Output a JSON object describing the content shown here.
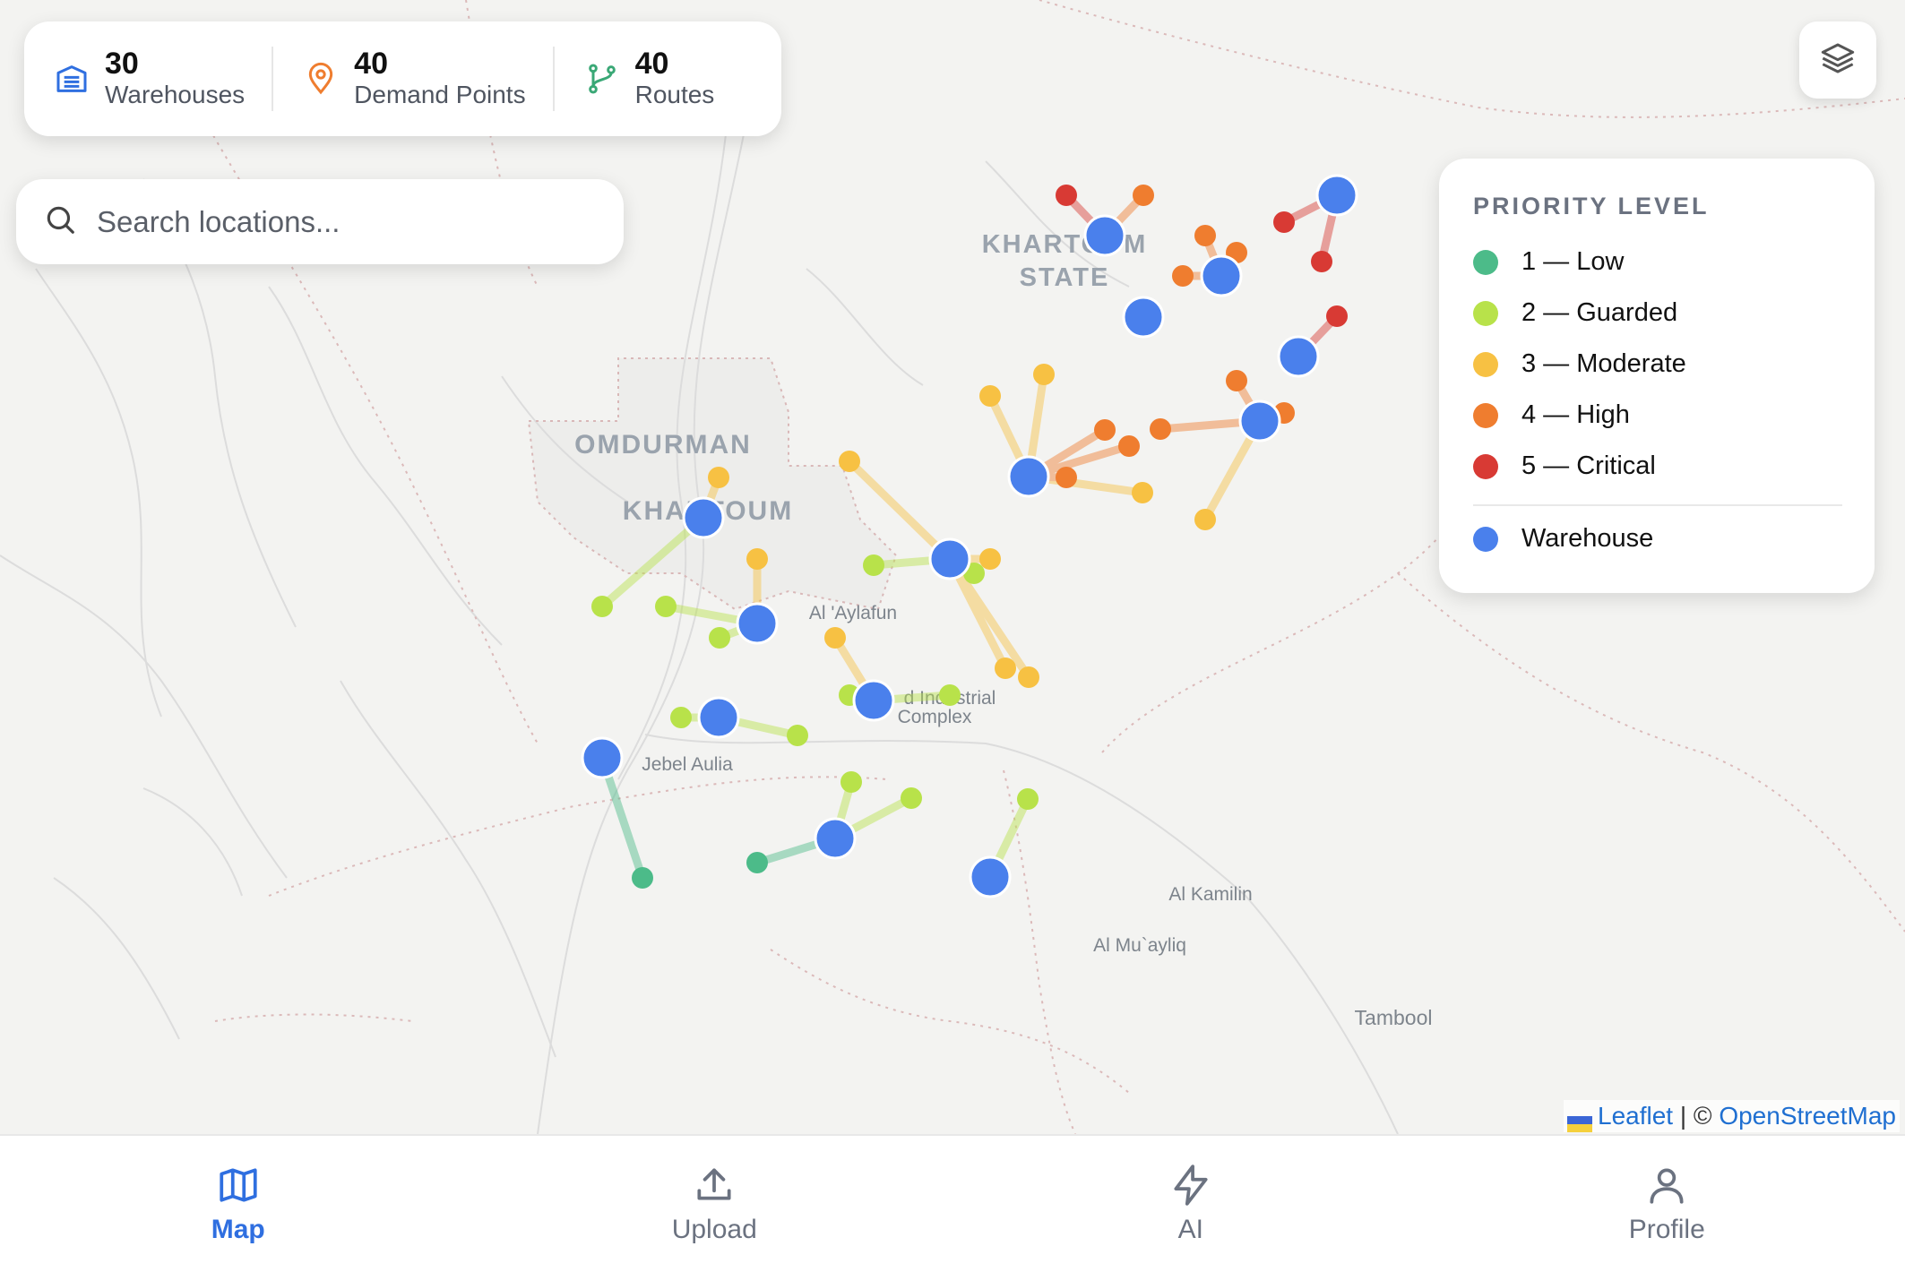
{
  "stats": {
    "warehouses": {
      "value": "30",
      "label": "Warehouses",
      "icon": "warehouse-icon"
    },
    "demand_points": {
      "value": "40",
      "label": "Demand Points",
      "icon": "map-pin-icon"
    },
    "routes": {
      "value": "40",
      "label": "Routes",
      "icon": "route-icon"
    }
  },
  "search": {
    "placeholder": "Search locations..."
  },
  "legend": {
    "title": "PRIORITY LEVEL",
    "items": [
      {
        "label": "1 — Low",
        "color": "#4cbb89"
      },
      {
        "label": "2 — Guarded",
        "color": "#b8e24a"
      },
      {
        "label": "3 — Moderate",
        "color": "#f7c143"
      },
      {
        "label": "4 — High",
        "color": "#ef7d2f"
      },
      {
        "label": "5 — Critical",
        "color": "#d83a34"
      }
    ],
    "warehouse": {
      "label": "Warehouse",
      "color": "#4a80ec"
    }
  },
  "map_labels": [
    {
      "text": "OMDURMAN",
      "kind": "city"
    },
    {
      "text": "KHARTOUM",
      "kind": "city"
    },
    {
      "text": "KHARTOUM",
      "kind": "state"
    },
    {
      "text": "STATE",
      "kind": "state"
    },
    {
      "text": "Al 'Aylafun",
      "kind": "town"
    },
    {
      "text": "d Industrial",
      "kind": "town"
    },
    {
      "text": "Complex",
      "kind": "town"
    },
    {
      "text": "Jebel Aulia",
      "kind": "town"
    },
    {
      "text": "Al Kamilin",
      "kind": "town"
    },
    {
      "text": "Al Mu`ayliq",
      "kind": "town"
    },
    {
      "text": "Tambool",
      "kind": "town"
    }
  ],
  "attribution": {
    "leaflet": "Leaflet",
    "separator": " | © ",
    "osm": "OpenStreetMap"
  },
  "nav": [
    {
      "label": "Map",
      "icon": "map-icon",
      "active": true
    },
    {
      "label": "Upload",
      "icon": "upload-icon",
      "active": false
    },
    {
      "label": "AI",
      "icon": "lightning-icon",
      "active": false
    },
    {
      "label": "Profile",
      "icon": "user-icon",
      "active": false
    }
  ]
}
